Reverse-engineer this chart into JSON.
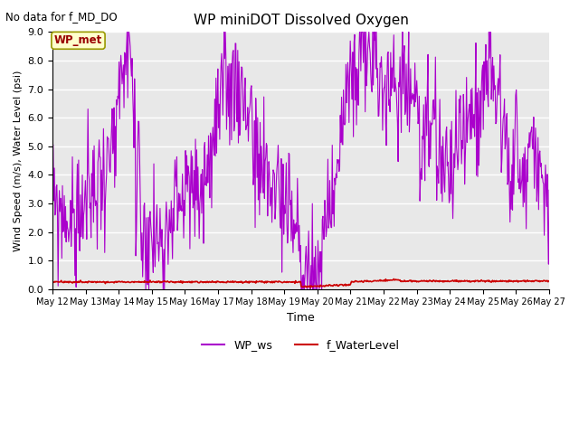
{
  "title": "WP miniDOT Dissolved Oxygen",
  "top_left_text": "No data for f_MD_DO",
  "ylabel": "Wind Speed (m/s), Water Level (psi)",
  "xlabel": "Time",
  "legend_label1": "WP_ws",
  "legend_label2": "f_WaterLevel",
  "inset_label": "WP_met",
  "ylim": [
    0.0,
    9.0
  ],
  "color_ws": "#aa00cc",
  "color_wl": "#cc0000",
  "background_color": "#e8e8e8",
  "xtick_labels": [
    "May 12",
    "May 13",
    "May 14",
    "May 15",
    "May 16",
    "May 17",
    "May 18",
    "May 19",
    "May 20",
    "May 21",
    "May 22",
    "May 23",
    "May 24",
    "May 25",
    "May 26",
    "May 27"
  ],
  "ytick_labels": [
    "0.0",
    "1.0",
    "2.0",
    "3.0",
    "4.0",
    "5.0",
    "6.0",
    "7.0",
    "8.0",
    "9.0"
  ],
  "figsize": [
    6.4,
    4.8
  ],
  "dpi": 100
}
